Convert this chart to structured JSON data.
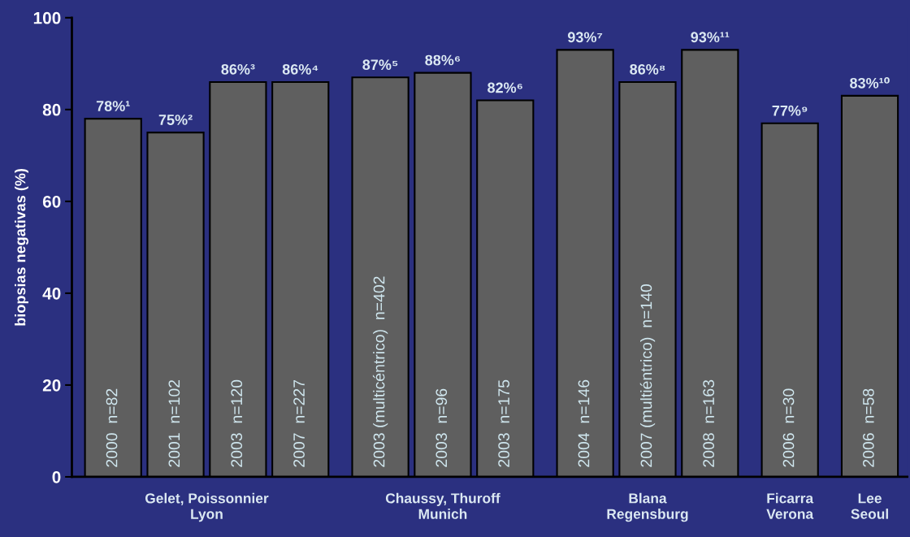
{
  "chart_data": {
    "type": "bar",
    "ylabel": "biopsias negativas (%)",
    "categories": [
      "2000  n=82",
      "2001  n=102",
      "2003  n=120",
      "2007  n=227",
      null,
      "2003 (multicéntrico)  n=402",
      "2003  n=96",
      "2003  n=175",
      null,
      "2004  n=146",
      "2007 (multiéntrico)  n=140",
      "2008  n=163",
      null,
      "2006  n=30",
      null,
      "2006  n=58"
    ],
    "values": [
      78,
      75,
      86,
      86,
      null,
      87,
      88,
      82,
      null,
      93,
      86,
      93,
      null,
      77,
      null,
      83
    ],
    "value_labels": [
      "78%¹",
      "75%²",
      "86%³",
      "86%⁴",
      null,
      "87%⁵",
      "88%⁶",
      "82%⁶",
      null,
      "93%⁷",
      "86%⁸",
      "93%¹¹",
      null,
      "77%⁹",
      null,
      "83%¹⁰"
    ],
    "color": "#5f5f5f",
    "ylim": [
      0,
      100
    ],
    "yticks": [
      0,
      20,
      40,
      60,
      80,
      100
    ],
    "annotations": [
      "Gelet, Poissonnier\nLyon",
      "Chaussy, Thuroff\nMunich",
      "Blana\nRegensburg",
      "Ficarra\nVerona",
      "Lee\nSeoul"
    ]
  }
}
